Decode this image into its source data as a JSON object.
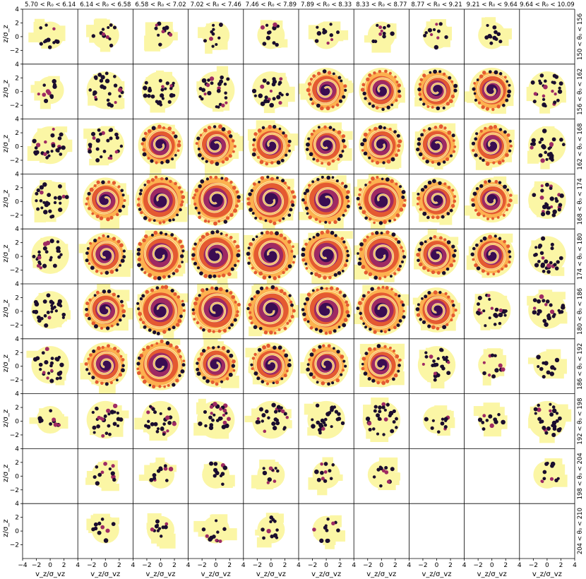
{
  "chart_data": {
    "type": "heatmap",
    "layout": "10x10 grid of phase-space panels",
    "column_titles": [
      "5.70 < R₀ < 6.14",
      "6.14 < R₀ < 6.58",
      "6.58 < R₀ < 7.02",
      "7.02 < R₀ < 7.46",
      "7.46 < R₀ < 7.89",
      "7.89 < R₀ < 8.33",
      "8.33 < R₀ < 8.77",
      "8.77 < R₀ < 9.21",
      "9.21 < R₀ < 9.64",
      "9.64 < R₀ < 10.09"
    ],
    "row_titles": [
      "150 < θ₀ < 156",
      "156 < θ₀ < 162",
      "162 < θ₀ < 168",
      "168 < θ₀ < 174",
      "174 < θ₀ < 180",
      "180 < θ₀ < 186",
      "186 < θ₀ < 192",
      "192 < θ₀ < 198",
      "198 < θ₀ < 204",
      "204 < θ₀ < 210"
    ],
    "xlabel": "v_z/σ_vz",
    "ylabel": "z/σ_z",
    "xlim": [
      -4,
      4
    ],
    "ylim": [
      -4,
      4
    ],
    "x_ticks": [
      "−4",
      "−2",
      "0",
      "2",
      "4"
    ],
    "y_ticks": [
      "−2",
      "0",
      "2",
      "4"
    ],
    "colormap": [
      "#fbfdbf",
      "#fcb14f",
      "#e45a31",
      "#9e2a63",
      "#3a0d52",
      "#1a0d2e"
    ],
    "background_mask_color": "#fbf6a5",
    "panel_occupancy": [
      [
        1,
        1,
        1,
        1,
        1,
        1,
        1,
        1,
        1,
        0
      ],
      [
        1,
        2,
        2,
        2,
        2,
        3,
        3,
        3,
        3,
        2
      ],
      [
        2,
        2,
        3,
        3,
        3,
        3,
        3,
        3,
        3,
        2
      ],
      [
        2,
        3,
        4,
        4,
        4,
        4,
        4,
        3,
        3,
        2
      ],
      [
        2,
        3,
        4,
        4,
        4,
        4,
        4,
        3,
        3,
        2
      ],
      [
        2,
        3,
        4,
        4,
        4,
        4,
        4,
        3,
        2,
        2
      ],
      [
        2,
        3,
        4,
        3,
        3,
        3,
        3,
        2,
        1,
        1
      ],
      [
        1,
        2,
        2,
        2,
        2,
        2,
        2,
        1,
        1,
        2
      ],
      [
        0,
        1,
        1,
        1,
        1,
        1,
        1,
        0,
        0,
        1
      ],
      [
        0,
        1,
        1,
        1,
        1,
        1,
        0,
        0,
        0,
        0
      ]
    ],
    "grid": false
  }
}
